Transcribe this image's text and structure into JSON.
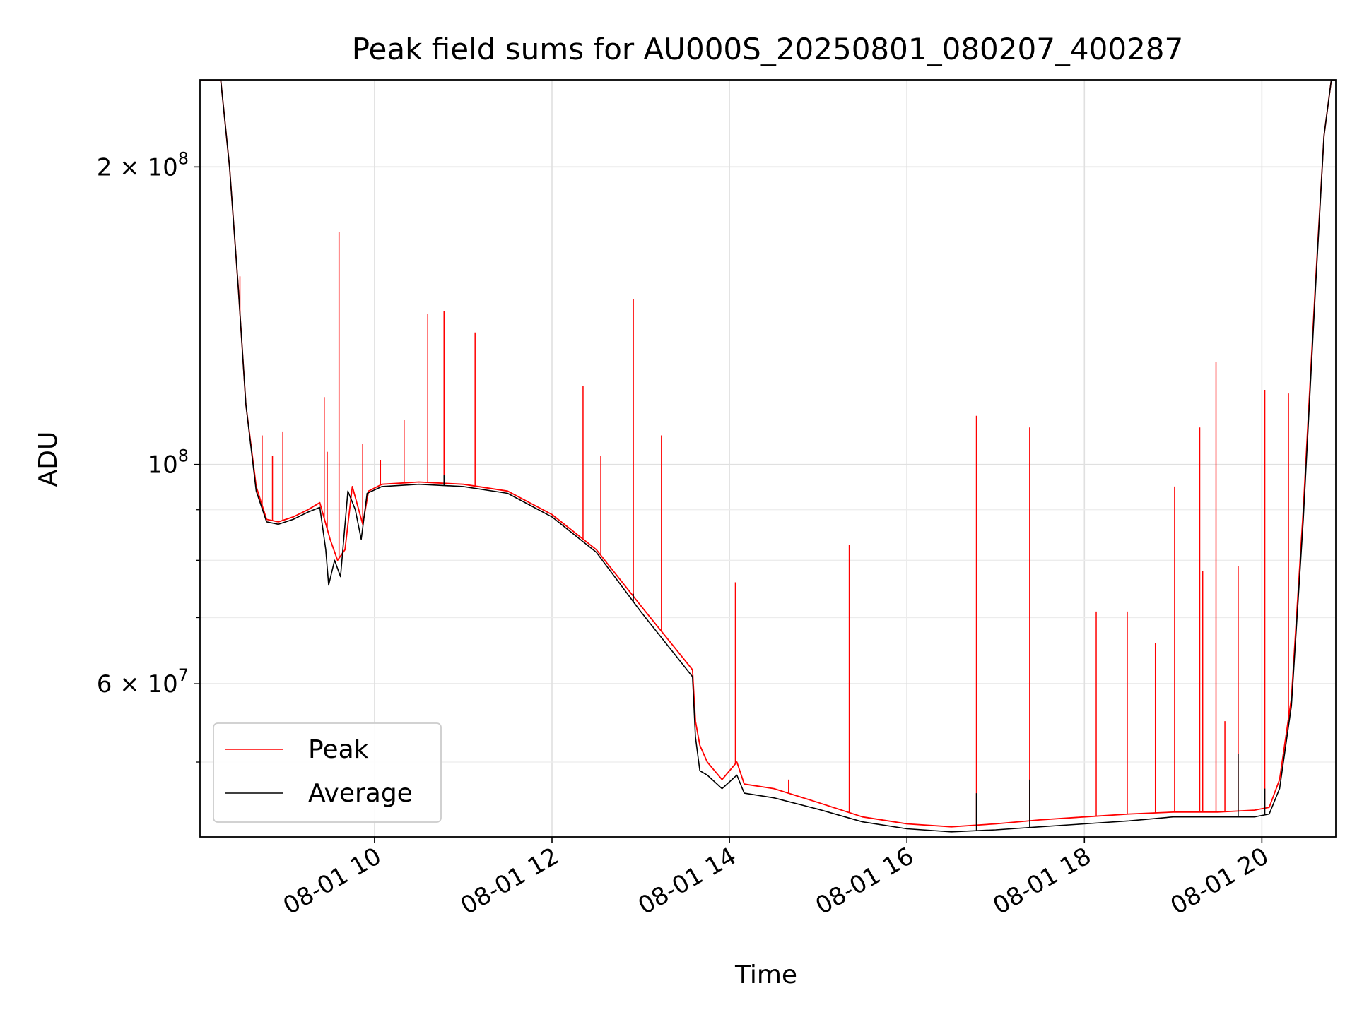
{
  "chart_data": {
    "type": "line",
    "title": "Peak field sums for AU000S_20250801_080207_400287",
    "xlabel": "Time",
    "ylabel": "ADU",
    "xscale": "time",
    "yscale": "log",
    "xlim": [
      "08-01 08:02",
      "08-01 20:50"
    ],
    "ylim": [
      42000000,
      245000000
    ],
    "grid": true,
    "legend_position": "lower-left",
    "x_ticks": [
      {
        "t": "08-01 10:00",
        "label": "08-01 10"
      },
      {
        "t": "08-01 12:00",
        "label": "08-01 12"
      },
      {
        "t": "08-01 14:00",
        "label": "08-01 14"
      },
      {
        "t": "08-01 16:00",
        "label": "08-01 16"
      },
      {
        "t": "08-01 18:00",
        "label": "08-01 18"
      },
      {
        "t": "08-01 20:00",
        "label": "08-01 20"
      }
    ],
    "y_ticks": [
      {
        "value": 200000000,
        "base": "2",
        "exp": "8"
      },
      {
        "value": 100000000,
        "base": "",
        "exp": "8"
      },
      {
        "value": 60000000,
        "base": "6",
        "exp": "7"
      }
    ],
    "y_minor_ticks": [
      50000000,
      70000000,
      80000000,
      90000000
    ],
    "series": [
      {
        "name": "Peak",
        "color": "#ff0000",
        "points": [
          [
            "08-01 08:02",
            245000000
          ],
          [
            "08-01 08:16",
            245000000
          ],
          [
            "08-01 08:22",
            200000000
          ],
          [
            "08-01 08:28",
            150000000
          ],
          [
            "08-01 08:33",
            115000000
          ],
          [
            "08-01 08:40",
            95000000
          ],
          [
            "08-01 08:47",
            88000000
          ],
          [
            "08-01 08:55",
            87500000
          ],
          [
            "08-01 09:05",
            88500000
          ],
          [
            "08-01 09:15",
            90000000
          ],
          [
            "08-01 09:23",
            91500000
          ],
          [
            "08-01 09:30",
            84000000
          ],
          [
            "08-01 09:35",
            80000000
          ],
          [
            "08-01 09:40",
            82000000
          ],
          [
            "08-01 09:45",
            95000000
          ],
          [
            "08-01 09:52",
            87000000
          ],
          [
            "08-01 09:56",
            94000000
          ],
          [
            "08-01 10:05",
            95500000
          ],
          [
            "08-01 10:30",
            96000000
          ],
          [
            "08-01 11:00",
            95500000
          ],
          [
            "08-01 11:30",
            94000000
          ],
          [
            "08-01 12:00",
            89000000
          ],
          [
            "08-01 12:30",
            82000000
          ],
          [
            "08-01 13:00",
            72000000
          ],
          [
            "08-01 13:35",
            62000000
          ],
          [
            "08-01 13:37",
            55000000
          ],
          [
            "08-01 13:40",
            52000000
          ],
          [
            "08-01 13:45",
            50000000
          ],
          [
            "08-01 13:55",
            48000000
          ],
          [
            "08-01 14:05",
            50000000
          ],
          [
            "08-01 14:10",
            47500000
          ],
          [
            "08-01 14:30",
            47000000
          ],
          [
            "08-01 15:00",
            45500000
          ],
          [
            "08-01 15:30",
            44000000
          ],
          [
            "08-01 16:00",
            43300000
          ],
          [
            "08-01 16:30",
            43000000
          ],
          [
            "08-01 17:00",
            43300000
          ],
          [
            "08-01 17:30",
            43700000
          ],
          [
            "08-01 18:00",
            44000000
          ],
          [
            "08-01 18:30",
            44300000
          ],
          [
            "08-01 19:00",
            44500000
          ],
          [
            "08-01 19:30",
            44500000
          ],
          [
            "08-01 19:55",
            44700000
          ],
          [
            "08-01 20:05",
            45000000
          ],
          [
            "08-01 20:12",
            48000000
          ],
          [
            "08-01 20:20",
            58000000
          ],
          [
            "08-01 20:28",
            90000000
          ],
          [
            "08-01 20:36",
            150000000
          ],
          [
            "08-01 20:42",
            215000000
          ],
          [
            "08-01 20:47",
            245000000
          ],
          [
            "08-01 20:50",
            245000000
          ]
        ],
        "spikes": [
          [
            "08-01 08:29",
            155000000
          ],
          [
            "08-01 08:37",
            105000000
          ],
          [
            "08-01 08:44",
            107000000
          ],
          [
            "08-01 08:51",
            102000000
          ],
          [
            "08-01 08:58",
            108000000
          ],
          [
            "08-01 09:26",
            117000000
          ],
          [
            "08-01 09:28",
            103000000
          ],
          [
            "08-01 09:36",
            172000000
          ],
          [
            "08-01 09:52",
            105000000
          ],
          [
            "08-01 10:04",
            101000000
          ],
          [
            "08-01 10:20",
            111000000
          ],
          [
            "08-01 10:36",
            142000000
          ],
          [
            "08-01 10:47",
            143000000
          ],
          [
            "08-01 11:08",
            136000000
          ],
          [
            "08-01 12:21",
            120000000
          ],
          [
            "08-01 12:33",
            102000000
          ],
          [
            "08-01 12:55",
            147000000
          ],
          [
            "08-01 13:14",
            107000000
          ],
          [
            "08-01 14:04",
            76000000
          ],
          [
            "08-01 14:40",
            48000000
          ],
          [
            "08-01 15:21",
            83000000
          ],
          [
            "08-01 16:47",
            112000000
          ],
          [
            "08-01 17:23",
            109000000
          ],
          [
            "08-01 18:08",
            71000000
          ],
          [
            "08-01 18:29",
            71000000
          ],
          [
            "08-01 18:48",
            66000000
          ],
          [
            "08-01 19:01",
            95000000
          ],
          [
            "08-01 19:18",
            109000000
          ],
          [
            "08-01 19:20",
            78000000
          ],
          [
            "08-01 19:29",
            127000000
          ],
          [
            "08-01 19:35",
            55000000
          ],
          [
            "08-01 19:44",
            79000000
          ],
          [
            "08-01 20:02",
            119000000
          ],
          [
            "08-01 20:18",
            118000000
          ]
        ]
      },
      {
        "name": "Average",
        "color": "#000000",
        "points": [
          [
            "08-01 08:02",
            245000000
          ],
          [
            "08-01 08:16",
            245000000
          ],
          [
            "08-01 08:22",
            200000000
          ],
          [
            "08-01 08:28",
            150000000
          ],
          [
            "08-01 08:33",
            115000000
          ],
          [
            "08-01 08:40",
            94000000
          ],
          [
            "08-01 08:47",
            87500000
          ],
          [
            "08-01 08:55",
            87000000
          ],
          [
            "08-01 09:05",
            88000000
          ],
          [
            "08-01 09:15",
            89500000
          ],
          [
            "08-01 09:23",
            90500000
          ],
          [
            "08-01 09:27",
            82000000
          ],
          [
            "08-01 09:29",
            75500000
          ],
          [
            "08-01 09:33",
            80000000
          ],
          [
            "08-01 09:37",
            77000000
          ],
          [
            "08-01 09:42",
            94000000
          ],
          [
            "08-01 09:47",
            90000000
          ],
          [
            "08-01 09:51",
            84000000
          ],
          [
            "08-01 09:55",
            93500000
          ],
          [
            "08-01 10:05",
            95000000
          ],
          [
            "08-01 10:30",
            95500000
          ],
          [
            "08-01 11:00",
            95000000
          ],
          [
            "08-01 11:30",
            93500000
          ],
          [
            "08-01 12:00",
            88500000
          ],
          [
            "08-01 12:30",
            81500000
          ],
          [
            "08-01 13:00",
            71000000
          ],
          [
            "08-01 13:35",
            61000000
          ],
          [
            "08-01 13:37",
            53000000
          ],
          [
            "08-01 13:40",
            49000000
          ],
          [
            "08-01 13:45",
            48500000
          ],
          [
            "08-01 13:55",
            47000000
          ],
          [
            "08-01 14:05",
            48500000
          ],
          [
            "08-01 14:10",
            46500000
          ],
          [
            "08-01 14:30",
            46000000
          ],
          [
            "08-01 15:00",
            44800000
          ],
          [
            "08-01 15:30",
            43500000
          ],
          [
            "08-01 16:00",
            42800000
          ],
          [
            "08-01 16:30",
            42500000
          ],
          [
            "08-01 17:00",
            42700000
          ],
          [
            "08-01 17:30",
            43000000
          ],
          [
            "08-01 18:00",
            43300000
          ],
          [
            "08-01 18:30",
            43600000
          ],
          [
            "08-01 19:00",
            44000000
          ],
          [
            "08-01 19:30",
            44000000
          ],
          [
            "08-01 19:55",
            44000000
          ],
          [
            "08-01 20:05",
            44300000
          ],
          [
            "08-01 20:12",
            47000000
          ],
          [
            "08-01 20:20",
            57000000
          ],
          [
            "08-01 20:28",
            88000000
          ],
          [
            "08-01 20:36",
            148000000
          ],
          [
            "08-01 20:42",
            215000000
          ],
          [
            "08-01 20:47",
            245000000
          ],
          [
            "08-01 20:50",
            245000000
          ]
        ],
        "spikes": [
          [
            "08-01 10:47",
            97500000
          ],
          [
            "08-01 12:55",
            74000000
          ],
          [
            "08-01 16:47",
            46500000
          ],
          [
            "08-01 17:23",
            48000000
          ],
          [
            "08-01 19:44",
            51000000
          ],
          [
            "08-01 20:02",
            47000000
          ]
        ]
      }
    ]
  }
}
